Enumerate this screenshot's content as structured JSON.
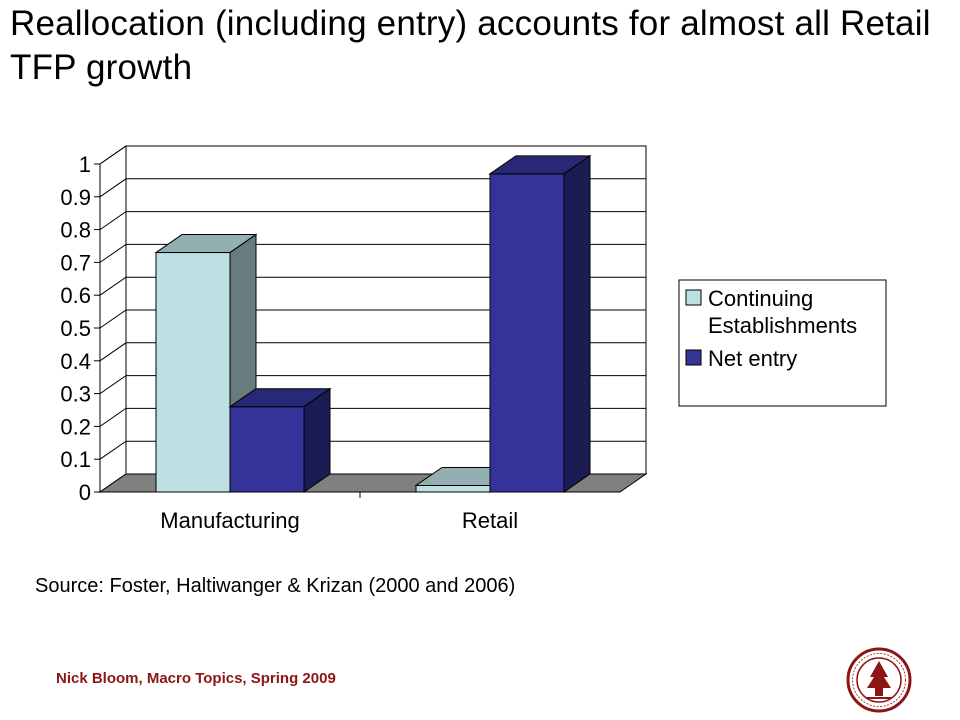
{
  "slide": {
    "title": "Reallocation (including entry) accounts for almost all Retail TFP growth",
    "source": "Source: Foster, Haltiwanger & Krizan (2000 and 2006)",
    "footer": "Nick Bloom, Macro Topics, Spring 2009",
    "seal_text": "LELAND STANFORD JUNIOR UNIVERSITY 1891"
  },
  "chart_data": {
    "type": "bar",
    "style": "3d-clustered-column",
    "categories": [
      "Manufacturing",
      "Retail"
    ],
    "series": [
      {
        "name": "Continuing Establishments",
        "values": [
          0.73,
          0.02
        ],
        "color": "#bde0e3"
      },
      {
        "name": "Net entry",
        "values": [
          0.26,
          0.97
        ],
        "color": "#333399"
      }
    ],
    "legend_lines": [
      [
        "Continuing",
        "Establishments"
      ],
      [
        "Net entry"
      ]
    ],
    "y_ticks": [
      0,
      0.1,
      0.2,
      0.3,
      0.4,
      0.5,
      0.6,
      0.7,
      0.8,
      0.9,
      1
    ],
    "y_tick_labels": [
      "0",
      "0.1",
      "0.2",
      "0.3",
      "0.4",
      "0.5",
      "0.6",
      "0.7",
      "0.8",
      "0.9",
      "1"
    ],
    "ylim": [
      0,
      1
    ],
    "grid": true,
    "legend_position": "right",
    "floor_color": "#808080"
  }
}
